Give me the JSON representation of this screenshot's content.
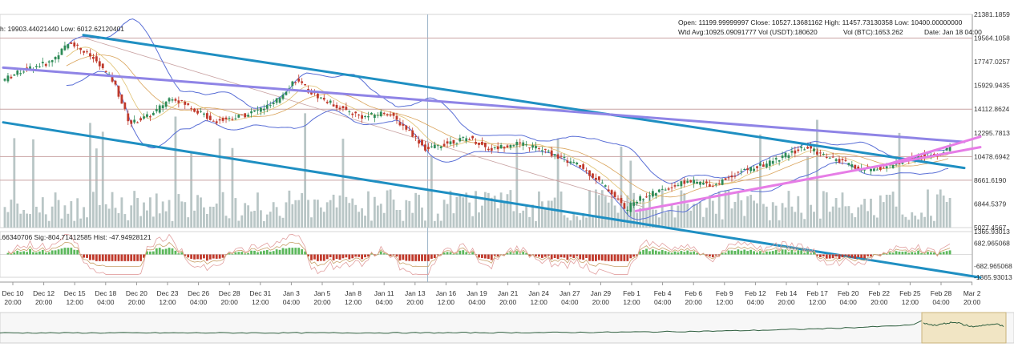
{
  "header": {
    "ohlc_label": "Open:    11199.99999997 Close:       10527.13681162 High:       11457.73130358 Low: 10400.00000000",
    "wtd_label": "Wtd Avg:10925.09091777 Vol (USDT):180620",
    "vol_btc_label": "Vol (BTC):1653.262",
    "date_label": "Date: Jan 18 04:00",
    "left_range_label": "h: 19903.44021440  Low: 6012.62120401",
    "macd_label": ".66340706  Sig:-804.71412585  Hist: -47.94928121"
  },
  "colors": {
    "background": "#ffffff",
    "candle_up": "#2e8b57",
    "candle_down": "#c0392b",
    "volume": "#b9c6c6",
    "bollinger": "#5a6fd6",
    "trend_blue": "#1f8fc2",
    "trend_purple": "#8f84e6",
    "trend_pink": "#e67de6",
    "hline": "#c9a3a3",
    "macd_hist_up": "#5cb85c",
    "macd_hist_down": "#c0392b",
    "navigator": "#2f5f3f"
  },
  "chart_data": [
    {
      "type": "candlestick",
      "pair": "BTC/USDT",
      "y_axis_ticks": [
        "21381.1859",
        "19564.1058",
        "17747.0257",
        "15929.9435",
        "14112.8624",
        "12295.7813",
        "10478.6942",
        "8661.6190",
        "6844.5379",
        "5027.4567"
      ],
      "ylim": [
        5027.4567,
        21381.1859
      ],
      "x_axis_ticks": [
        {
          "d": "Dec 10",
          "t": "20:00"
        },
        {
          "d": "Dec 12",
          "t": "20:00"
        },
        {
          "d": "Dec 15",
          "t": "12:00"
        },
        {
          "d": "Dec 18",
          "t": "04:00"
        },
        {
          "d": "Dec 20",
          "t": "20:00"
        },
        {
          "d": "Dec 23",
          "t": "12:00"
        },
        {
          "d": "Dec 26",
          "t": "04:00"
        },
        {
          "d": "Dec 28",
          "t": "20:00"
        },
        {
          "d": "Dec 31",
          "t": "12:00"
        },
        {
          "d": "Jan 3",
          "t": "04:00"
        },
        {
          "d": "Jan 5",
          "t": "20:00"
        },
        {
          "d": "Jan 8",
          "t": "12:00"
        },
        {
          "d": "Jan 11",
          "t": "04:00"
        },
        {
          "d": "Jan 13",
          "t": "20:00"
        },
        {
          "d": "Jan 16",
          "t": "12:00"
        },
        {
          "d": "Jan 19",
          "t": "04:00"
        },
        {
          "d": "Jan 21",
          "t": "20:00"
        },
        {
          "d": "Jan 24",
          "t": "12:00"
        },
        {
          "d": "Jan 27",
          "t": "04:00"
        },
        {
          "d": "Jan 29",
          "t": "20:00"
        },
        {
          "d": "Feb 1",
          "t": "12:00"
        },
        {
          "d": "Feb 4",
          "t": "04:00"
        },
        {
          "d": "Feb 6",
          "t": "20:00"
        },
        {
          "d": "Feb 9",
          "t": "12:00"
        },
        {
          "d": "Feb 12",
          "t": "04:00"
        },
        {
          "d": "Feb 14",
          "t": "20:00"
        },
        {
          "d": "Feb 17",
          "t": "12:00"
        },
        {
          "d": "Feb 20",
          "t": "04:00"
        },
        {
          "d": "Feb 22",
          "t": "20:00"
        },
        {
          "d": "Feb 25",
          "t": "12:00"
        },
        {
          "d": "Feb 28",
          "t": "04:00"
        },
        {
          "d": "Mar 2",
          "t": "20:00"
        }
      ],
      "price_path": [
        [
          0,
          16300
        ],
        [
          1.5,
          17200
        ],
        [
          3,
          17700
        ],
        [
          4.3,
          19300
        ],
        [
          5.8,
          17900
        ],
        [
          7,
          16200
        ],
        [
          8,
          13000
        ],
        [
          9.4,
          13700
        ],
        [
          10.6,
          15100
        ],
        [
          12,
          14100
        ],
        [
          13.3,
          13200
        ],
        [
          15,
          13600
        ],
        [
          17,
          14500
        ],
        [
          18.3,
          16400
        ],
        [
          19.4,
          15300
        ],
        [
          20.5,
          14600
        ],
        [
          21.5,
          14000
        ],
        [
          22.6,
          13500
        ],
        [
          24,
          13900
        ],
        [
          25.5,
          12400
        ],
        [
          26.5,
          11000
        ],
        [
          28,
          11600
        ],
        [
          29.2,
          11900
        ],
        [
          30.5,
          11000
        ],
        [
          32,
          11500
        ],
        [
          33.3,
          11200
        ],
        [
          34.5,
          10600
        ],
        [
          36,
          9800
        ],
        [
          37.3,
          8600
        ],
        [
          38.4,
          7300
        ],
        [
          39,
          6300
        ],
        [
          39.5,
          7100
        ],
        [
          41,
          7800
        ],
        [
          42.8,
          8600
        ],
        [
          44.5,
          8300
        ],
        [
          46,
          9300
        ],
        [
          47.5,
          9800
        ],
        [
          49,
          10600
        ],
        [
          50.2,
          11200
        ],
        [
          51.5,
          10500
        ],
        [
          52.6,
          10000
        ],
        [
          53.6,
          9500
        ],
        [
          55,
          9600
        ],
        [
          57,
          10400
        ],
        [
          58.5,
          10600
        ],
        [
          59.2,
          11200
        ]
      ],
      "horizontal_levels": [
        19564.1058,
        14112.8624,
        10478.6942,
        8661.619
      ],
      "trendlines": [
        {
          "color": "trend_blue",
          "from": [
            5,
            19800
          ],
          "to": [
            60,
            9600
          ]
        },
        {
          "color": "trend_blue",
          "from": [
            0,
            13100
          ],
          "to": [
            61,
            1200
          ]
        },
        {
          "color": "trend_purple",
          "from": [
            0,
            17300
          ],
          "to": [
            60,
            11600
          ]
        },
        {
          "color": "trend_pink",
          "from": [
            39.5,
            6300
          ],
          "to": [
            61,
            11200
          ]
        },
        {
          "color": "trend_pink",
          "from": [
            55,
            9800
          ],
          "to": [
            61,
            12000
          ]
        }
      ]
    },
    {
      "type": "macd",
      "y_axis_ticks": [
        "1365.93013",
        "682.965068",
        "-682.965068",
        "-1365.93013"
      ],
      "ylim": [
        -1365.93013,
        1365.93013
      ]
    }
  ]
}
